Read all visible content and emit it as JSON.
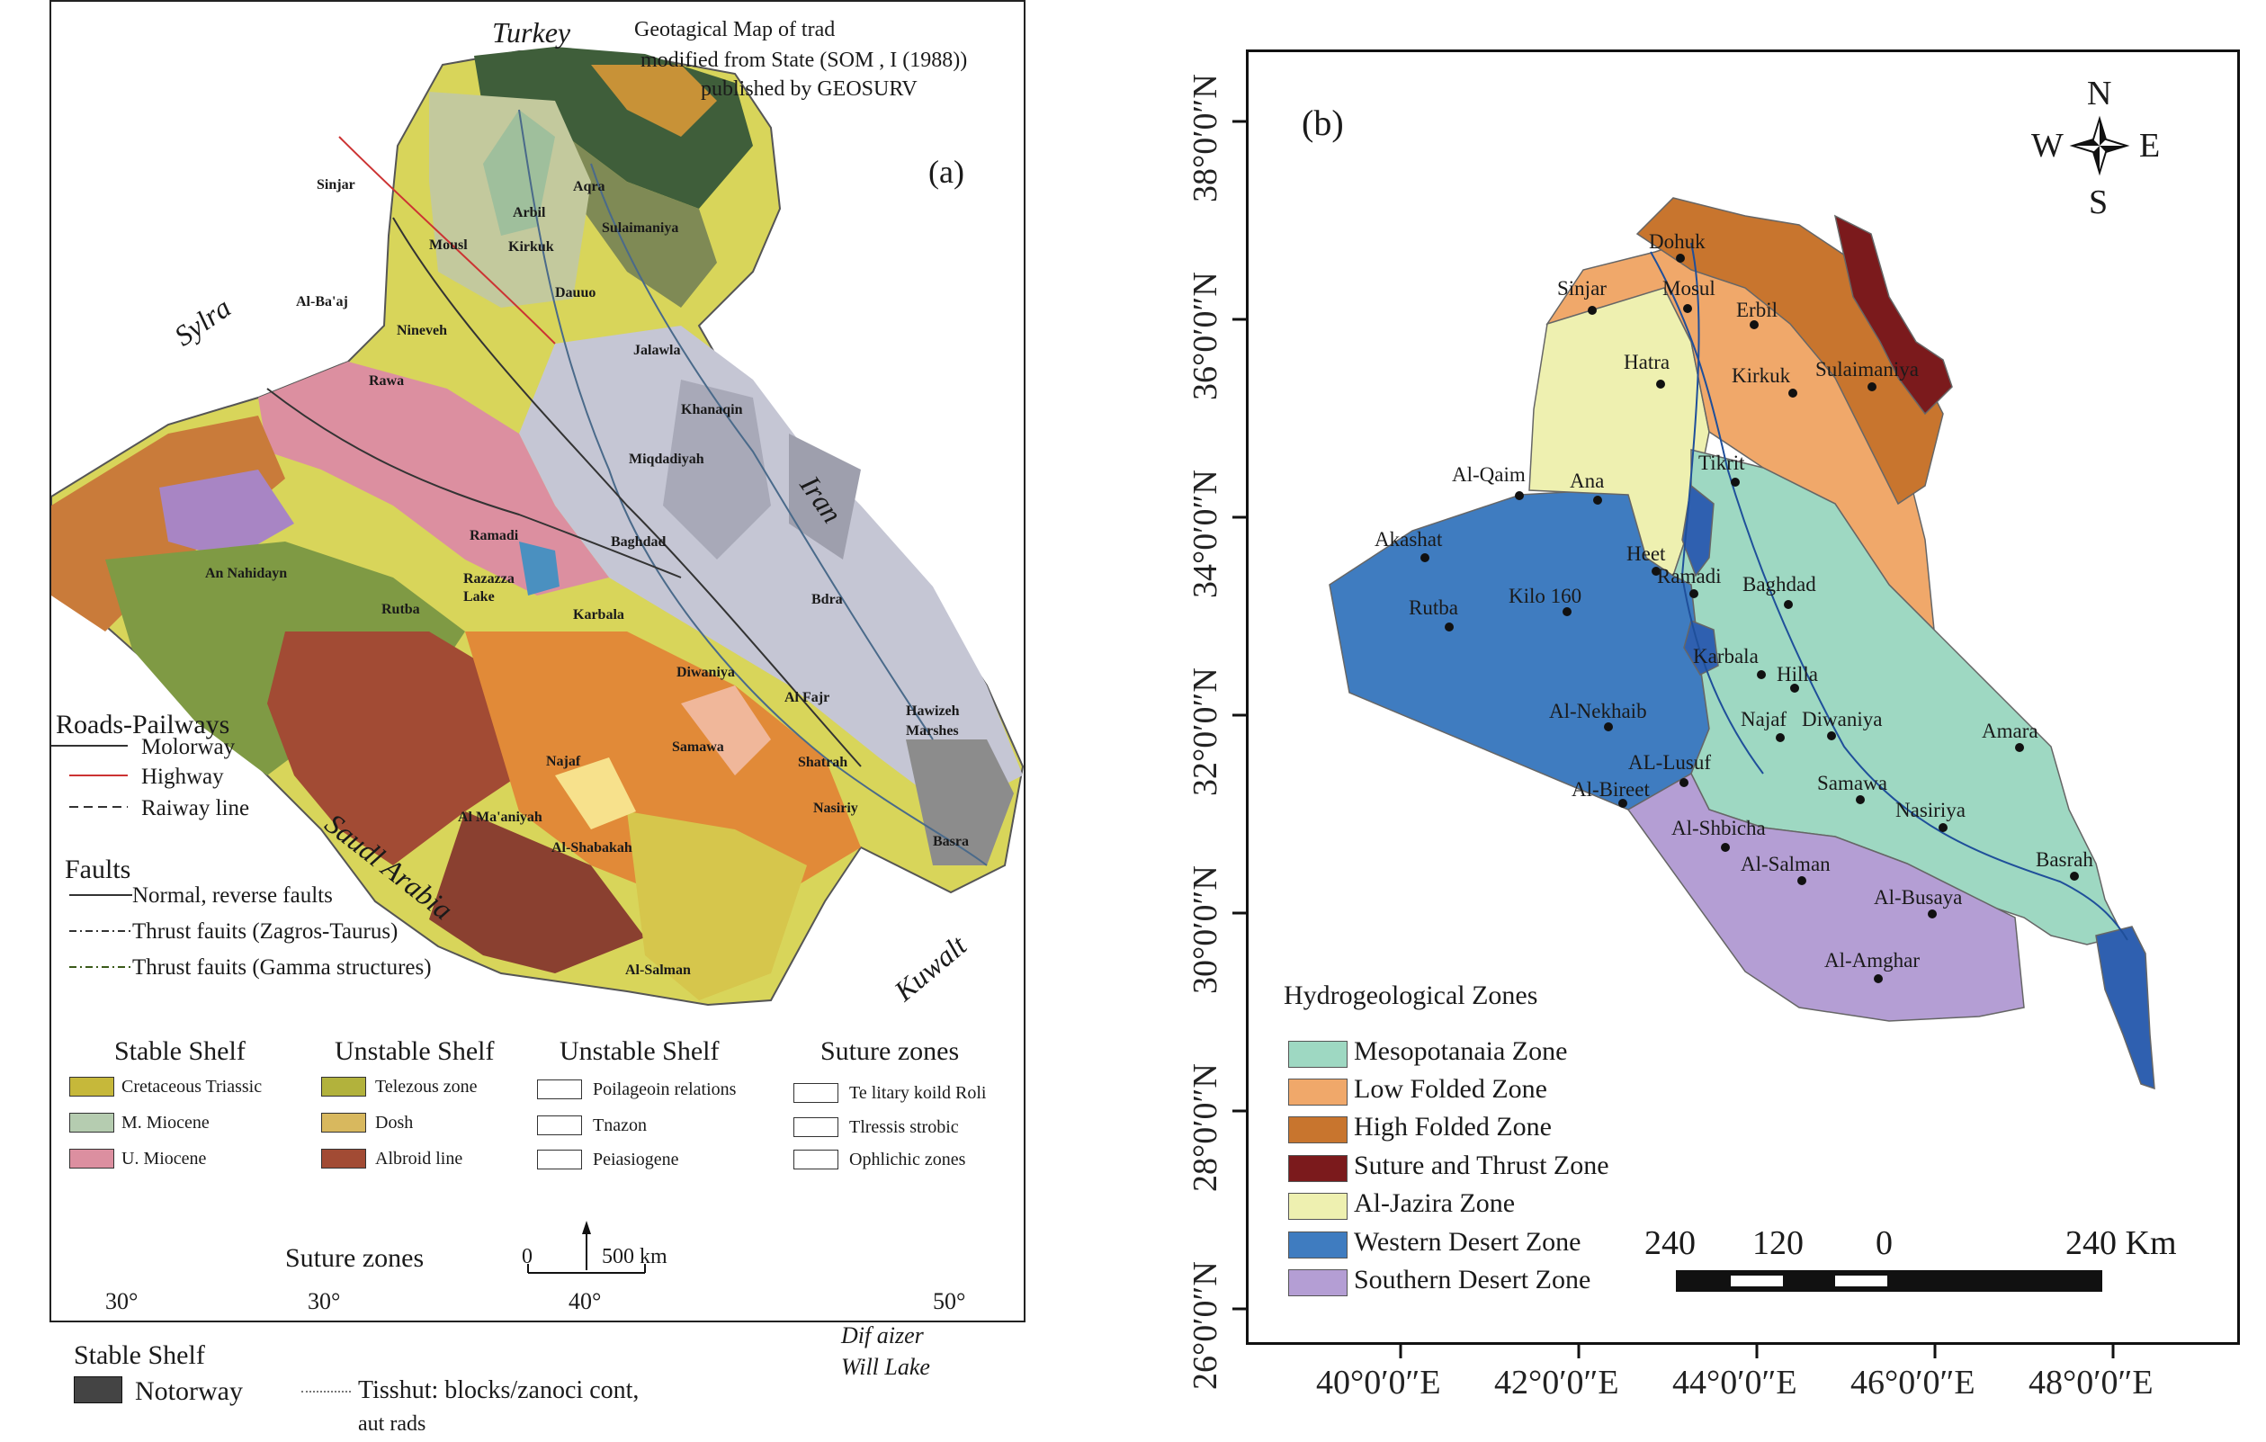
{
  "panel_a": {
    "title_lines": [
      "Geotagical Map of trad",
      "modified from State (SOM , I (1988))",
      "published by GEOSURV"
    ],
    "label": "(a)",
    "countries": {
      "turkey": "Turkey",
      "syria": "Sylra",
      "iran": "Iran",
      "saudi": "Saudl Arabia",
      "kuwait": "Kuwalt"
    },
    "cities": {
      "sinjar": "Sinjar",
      "aqra": "Aqra",
      "arbil": "Arbil",
      "mosul": "Mousl",
      "kirkuk": "Kirkuk",
      "sulaimaniya": "Sulaimaniya",
      "albaaj": "Al-Ba'aj",
      "dauuo": "Dauuo",
      "nineveh": "Nineveh",
      "jalawla": "Jalawla",
      "rawa": "Rawa",
      "khanaqin": "Khanaqin",
      "miqdadiyah": "Miqdadiyah",
      "annahidayn": "An Nahidayn",
      "ramadi": "Ramadi",
      "baghdad": "Baghdad",
      "razazza": "Razazza",
      "lake": "Lake",
      "karbala": "Karbala",
      "rutba": "Rutba",
      "bdra": "Bdra",
      "diwaniya": "Diwaniya",
      "alfajr": "Al Fajr",
      "hawizeh": "Hawizeh",
      "marshes": "Marshes",
      "najaf": "Najaf",
      "samawa": "Samawa",
      "shatrah": "Shatrah",
      "almaaniyah": "Al Ma'aniyah",
      "nasiriy": "Nasiriy",
      "alshabakah": "Al-Shabakah",
      "basra": "Basra",
      "alsalman": "Al-Salman"
    },
    "roads": {
      "title": "Roads-Pailways",
      "items": [
        "Molorway",
        "Highway",
        "Raiway line"
      ]
    },
    "faults": {
      "title": "Faults",
      "items": [
        "Normal, reverse faults",
        "Thrust fauits (Zagros-Taurus)",
        "Thrust fauits (Gamma structures)"
      ]
    },
    "legend_groups": [
      {
        "title": "Stable Shelf",
        "items": [
          {
            "label": "Cretaceous Triassic",
            "color": "#c6b83a"
          },
          {
            "label": "M. Miocene",
            "color": "#b5ccb0"
          },
          {
            "label": "U. Miocene",
            "color": "#dc8fa0"
          }
        ]
      },
      {
        "title": "Unstable Shelf",
        "items": [
          {
            "label": "Telezous zone",
            "color": "#c8c9d6"
          },
          {
            "label": "Dosh",
            "color": "#abaebe"
          },
          {
            "label": "Albroid line",
            "color": "#808080"
          }
        ]
      },
      {
        "title": "Unstable Shelf",
        "items": [
          {
            "label": "Poilageoin relations",
            "color": "#b2b23c"
          },
          {
            "label": "Tnazon",
            "color": "#d8b85e"
          },
          {
            "label": "Peiasiogene",
            "color": "#a24b34"
          }
        ]
      },
      {
        "title": "Suture zones",
        "items": [
          {
            "label": "Te litary koild Roli",
            "color": "#a82423"
          },
          {
            "label": "Tlressis strobic",
            "color": "#c98a2e"
          },
          {
            "label": "Ophlichic zones",
            "color": "#3d3780"
          }
        ]
      }
    ],
    "suture_zones_bottom": "Suture zones",
    "scale": {
      "zero": "0",
      "km": "500 km"
    },
    "lon_labels": [
      "30°",
      "30°",
      "40°",
      "50°"
    ],
    "below": {
      "stable_shelf": "Stable Shelf",
      "notorway": "Notorway",
      "tisshut": "Tisshut: blocks/zanoci cont,",
      "aut_rads": "aut rads",
      "dif": "Dif aizer",
      "will_lake": "Will Lake"
    }
  },
  "panel_b": {
    "label": "(b)",
    "compass": {
      "n": "N",
      "s": "S",
      "e": "E",
      "w": "W"
    },
    "lat_ticks": [
      "38°0′0″N",
      "36°0′0″N",
      "34°0′0″N",
      "32°0′0″N",
      "30°0′0″N",
      "28°0′0″N",
      "26°0′0″N"
    ],
    "lon_ticks": [
      "40°0′0″E",
      "42°0′0″E",
      "44°0′0″E",
      "46°0′0″E",
      "48°0′0″E"
    ],
    "cities": {
      "dohuk": "Dohuk",
      "sinjar": "Sinjar",
      "mosul": "Mosul",
      "erbil": "Erbil",
      "hatra": "Hatra",
      "kirkuk": "Kirkuk",
      "sulaimaniya": "Sulaimaniya",
      "tikrit": "Tikrit",
      "alqaim": "Al-Qaim",
      "ana": "Ana",
      "akashat": "Akashat",
      "heet": "Heet",
      "ramadi": "Ramadi",
      "baghdad": "Baghdad",
      "rutba": "Rutba",
      "kilo160": "Kilo 160",
      "karbala": "Karbala",
      "hilla": "Hilla",
      "alnekhaib": "Al-Nekhaib",
      "najaf": "Najaf",
      "diwaniya": "Diwaniya",
      "amara": "Amara",
      "allusuf": "AL-Lusuf",
      "albireet": "Al-Bireet",
      "samawa": "Samawa",
      "nasiriya": "Nasiriya",
      "alshbicha": "Al-Shbicha",
      "basrah": "Basrah",
      "alsalman": "Al-Salman",
      "albusaya": "Al-Busaya",
      "alamghar": "Al-Amghar"
    },
    "legend": {
      "title": "Hydrogeological Zones",
      "items": [
        {
          "label": "Mesopotanaia Zone",
          "color": "#9ed8c2"
        },
        {
          "label": "Low Folded Zone",
          "color": "#f0a86a"
        },
        {
          "label": "High Folded Zone",
          "color": "#c8752e"
        },
        {
          "label": "Suture and Thrust Zone",
          "color": "#7b1a1c"
        },
        {
          "label": "Al-Jazira Zone",
          "color": "#eef0b0"
        },
        {
          "label": "Western Desert Zone",
          "color": "#3f7cc0"
        },
        {
          "label": "Southern Desert Zone",
          "color": "#b49ed4"
        }
      ]
    },
    "scale": {
      "l240": "240",
      "l120": "120",
      "l0": "0",
      "r240": "240 Km"
    }
  }
}
